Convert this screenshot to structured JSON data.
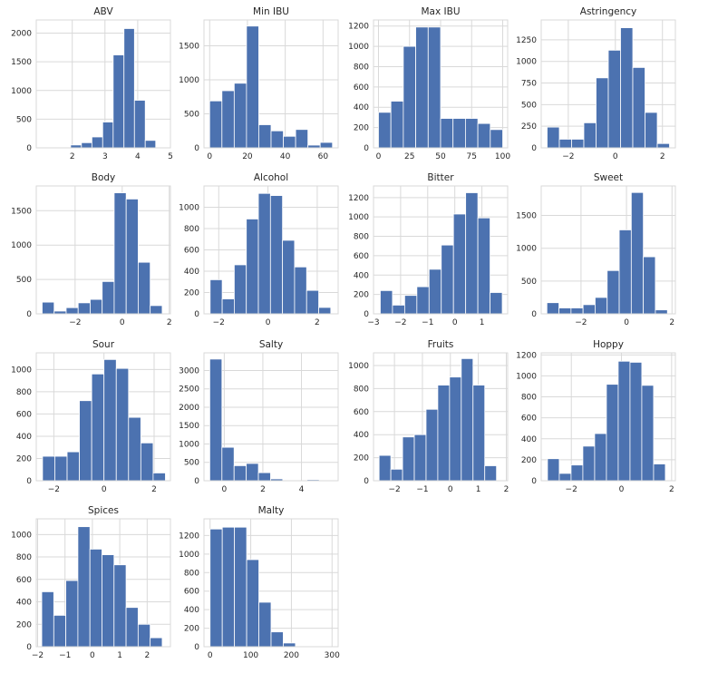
{
  "colors": {
    "bar": "#4c72b0",
    "plot_bg": "#ffffff",
    "grid": "#d9d9d9",
    "text": "#262626"
  },
  "chart_data": [
    {
      "type": "bar",
      "title": "ABV",
      "xlim": [
        0.9,
        5.0
      ],
      "ylim": [
        0,
        2230
      ],
      "xticks": [
        2,
        3,
        4,
        5
      ],
      "yticks": [
        0,
        500,
        1000,
        1500,
        2000
      ],
      "bins": [
        [
          1.3,
          1.63,
          0
        ],
        [
          1.63,
          1.95,
          0
        ],
        [
          1.95,
          2.28,
          50
        ],
        [
          2.28,
          2.6,
          90
        ],
        [
          2.6,
          2.93,
          190
        ],
        [
          2.93,
          3.25,
          450
        ],
        [
          3.25,
          3.58,
          1620
        ],
        [
          3.58,
          3.9,
          2080
        ],
        [
          3.9,
          4.23,
          830
        ],
        [
          4.23,
          4.55,
          130
        ]
      ]
    },
    {
      "type": "bar",
      "title": "Min IBU",
      "xlim": [
        -3,
        68
      ],
      "ylim": [
        0,
        1880
      ],
      "xticks": [
        0,
        20,
        40,
        60
      ],
      "yticks": [
        0,
        500,
        1000,
        1500
      ],
      "bins": [
        [
          0,
          6.5,
          690
        ],
        [
          6.5,
          13,
          840
        ],
        [
          13,
          19.5,
          950
        ],
        [
          19.5,
          26,
          1790
        ],
        [
          26,
          32.5,
          340
        ],
        [
          32.5,
          39,
          250
        ],
        [
          39,
          45.5,
          170
        ],
        [
          45.5,
          52,
          270
        ],
        [
          52,
          58.5,
          40
        ],
        [
          58.5,
          65,
          80
        ]
      ]
    },
    {
      "type": "bar",
      "title": "Max IBU",
      "xlim": [
        -4,
        104
      ],
      "ylim": [
        0,
        1260
      ],
      "xticks": [
        0,
        25,
        50,
        75,
        100
      ],
      "yticks": [
        0,
        200,
        400,
        600,
        800,
        1000,
        1200
      ],
      "bins": [
        [
          0,
          10,
          350
        ],
        [
          10,
          20,
          460
        ],
        [
          20,
          30,
          1000
        ],
        [
          30,
          40,
          1190
        ],
        [
          40,
          50,
          1190
        ],
        [
          50,
          60,
          290
        ],
        [
          60,
          70,
          290
        ],
        [
          70,
          80,
          290
        ],
        [
          80,
          90,
          240
        ],
        [
          90,
          100,
          180
        ]
      ]
    },
    {
      "type": "bar",
      "title": "Astringency",
      "xlim": [
        -3.15,
        2.55
      ],
      "ylim": [
        0,
        1480
      ],
      "xticks": [
        -2,
        0,
        2
      ],
      "yticks": [
        0,
        250,
        500,
        750,
        1000,
        1250
      ],
      "bins": [
        [
          -2.9,
          -2.38,
          240
        ],
        [
          -2.38,
          -1.86,
          100
        ],
        [
          -1.86,
          -1.34,
          100
        ],
        [
          -1.34,
          -0.82,
          290
        ],
        [
          -0.82,
          -0.3,
          810
        ],
        [
          -0.3,
          0.22,
          1130
        ],
        [
          0.22,
          0.74,
          1390
        ],
        [
          0.74,
          1.26,
          930
        ],
        [
          1.26,
          1.78,
          410
        ],
        [
          1.78,
          2.3,
          50
        ]
      ]
    },
    {
      "type": "bar",
      "title": "Body",
      "xlim": [
        -3.65,
        2.05
      ],
      "ylim": [
        0,
        1860
      ],
      "xticks": [
        -2,
        0,
        2
      ],
      "yticks": [
        0,
        500,
        1000,
        1500
      ],
      "bins": [
        [
          -3.4,
          -2.89,
          170
        ],
        [
          -2.89,
          -2.38,
          40
        ],
        [
          -2.38,
          -1.87,
          90
        ],
        [
          -1.87,
          -1.36,
          160
        ],
        [
          -1.36,
          -0.85,
          210
        ],
        [
          -0.85,
          -0.34,
          470
        ],
        [
          -0.34,
          0.17,
          1760
        ],
        [
          0.17,
          0.68,
          1670
        ],
        [
          0.68,
          1.19,
          750
        ],
        [
          1.19,
          1.7,
          120
        ]
      ]
    },
    {
      "type": "bar",
      "title": "Alcohol",
      "xlim": [
        -2.6,
        2.85
      ],
      "ylim": [
        0,
        1200
      ],
      "xticks": [
        -2,
        0,
        2
      ],
      "yticks": [
        0,
        200,
        400,
        600,
        800,
        1000
      ],
      "bins": [
        [
          -2.35,
          -1.86,
          320
        ],
        [
          -1.86,
          -1.37,
          140
        ],
        [
          -1.37,
          -0.88,
          460
        ],
        [
          -0.88,
          -0.39,
          890
        ],
        [
          -0.39,
          0.1,
          1130
        ],
        [
          0.1,
          0.59,
          1110
        ],
        [
          0.59,
          1.08,
          690
        ],
        [
          1.08,
          1.57,
          440
        ],
        [
          1.57,
          2.06,
          220
        ],
        [
          2.06,
          2.55,
          60
        ]
      ]
    },
    {
      "type": "bar",
      "title": "Bitter",
      "xlim": [
        -3,
        1.95
      ],
      "ylim": [
        0,
        1320
      ],
      "xticks": [
        -3,
        -2,
        -1,
        0,
        1
      ],
      "yticks": [
        0,
        200,
        400,
        600,
        800,
        1000,
        1200
      ],
      "bins": [
        [
          -2.75,
          -2.3,
          240
        ],
        [
          -2.3,
          -1.85,
          90
        ],
        [
          -1.85,
          -1.4,
          190
        ],
        [
          -1.4,
          -0.95,
          280
        ],
        [
          -0.95,
          -0.5,
          460
        ],
        [
          -0.5,
          -0.05,
          710
        ],
        [
          -0.05,
          0.4,
          1030
        ],
        [
          0.4,
          0.85,
          1250
        ],
        [
          0.85,
          1.3,
          990
        ],
        [
          1.3,
          1.75,
          220
        ]
      ]
    },
    {
      "type": "bar",
      "title": "Sweet",
      "xlim": [
        -3.75,
        2.15
      ],
      "ylim": [
        0,
        1950
      ],
      "xticks": [
        -2,
        0,
        2
      ],
      "yticks": [
        0,
        500,
        1000,
        1500
      ],
      "bins": [
        [
          -3.5,
          -2.97,
          170
        ],
        [
          -2.97,
          -2.44,
          90
        ],
        [
          -2.44,
          -1.91,
          90
        ],
        [
          -1.91,
          -1.38,
          140
        ],
        [
          -1.38,
          -0.85,
          250
        ],
        [
          -0.85,
          -0.32,
          660
        ],
        [
          -0.32,
          0.21,
          1280
        ],
        [
          0.21,
          0.74,
          1850
        ],
        [
          0.74,
          1.27,
          870
        ],
        [
          1.27,
          1.8,
          60
        ]
      ]
    },
    {
      "type": "bar",
      "title": "Sour",
      "xlim": [
        -2.7,
        2.65
      ],
      "ylim": [
        0,
        1150
      ],
      "xticks": [
        -2,
        0,
        2
      ],
      "yticks": [
        0,
        200,
        400,
        600,
        800,
        1000
      ],
      "bins": [
        [
          -2.45,
          -1.96,
          220
        ],
        [
          -1.96,
          -1.47,
          220
        ],
        [
          -1.47,
          -0.98,
          260
        ],
        [
          -0.98,
          -0.49,
          720
        ],
        [
          -0.49,
          0,
          960
        ],
        [
          0,
          0.49,
          1090
        ],
        [
          0.49,
          0.98,
          1010
        ],
        [
          0.98,
          1.47,
          570
        ],
        [
          1.47,
          1.96,
          340
        ],
        [
          1.96,
          2.45,
          70
        ]
      ]
    },
    {
      "type": "bar",
      "title": "Salty",
      "xlim": [
        -1.05,
        5.9
      ],
      "ylim": [
        0,
        3480
      ],
      "xticks": [
        0,
        2,
        4
      ],
      "yticks": [
        0,
        500,
        1000,
        1500,
        2000,
        2500,
        3000
      ],
      "bins": [
        [
          -0.75,
          -0.12,
          3310
        ],
        [
          -0.12,
          0.51,
          910
        ],
        [
          0.51,
          1.14,
          410
        ],
        [
          1.14,
          1.77,
          470
        ],
        [
          1.77,
          2.4,
          220
        ],
        [
          2.4,
          3.03,
          50
        ],
        [
          3.03,
          3.66,
          0
        ],
        [
          3.66,
          4.29,
          0
        ],
        [
          4.29,
          4.92,
          30
        ],
        [
          4.92,
          5.55,
          0
        ]
      ]
    },
    {
      "type": "bar",
      "title": "Fruits",
      "xlim": [
        -2.75,
        2.05
      ],
      "ylim": [
        0,
        1110
      ],
      "xticks": [
        -2,
        -1,
        0,
        1,
        2
      ],
      "yticks": [
        0,
        200,
        400,
        600,
        800,
        1000
      ],
      "bins": [
        [
          -2.55,
          -2.13,
          220
        ],
        [
          -2.13,
          -1.71,
          100
        ],
        [
          -1.71,
          -1.29,
          380
        ],
        [
          -1.29,
          -0.87,
          400
        ],
        [
          -0.87,
          -0.45,
          620
        ],
        [
          -0.45,
          -0.03,
          830
        ],
        [
          -0.03,
          0.39,
          900
        ],
        [
          0.39,
          0.81,
          1060
        ],
        [
          0.81,
          1.23,
          830
        ],
        [
          1.23,
          1.65,
          130
        ]
      ]
    },
    {
      "type": "bar",
      "title": "Hoppy",
      "xlim": [
        -3.2,
        2.15
      ],
      "ylim": [
        0,
        1220
      ],
      "xticks": [
        -2,
        0,
        2
      ],
      "yticks": [
        0,
        200,
        400,
        600,
        800,
        1000,
        1200
      ],
      "bins": [
        [
          -2.95,
          -2.48,
          210
        ],
        [
          -2.48,
          -2.01,
          70
        ],
        [
          -2.01,
          -1.54,
          150
        ],
        [
          -1.54,
          -1.07,
          330
        ],
        [
          -1.07,
          -0.6,
          450
        ],
        [
          -0.6,
          -0.13,
          920
        ],
        [
          -0.13,
          0.34,
          1140
        ],
        [
          0.34,
          0.81,
          1130
        ],
        [
          0.81,
          1.28,
          910
        ],
        [
          1.28,
          1.75,
          160
        ]
      ]
    },
    {
      "type": "bar",
      "title": "Spices",
      "xlim": [
        -2.05,
        2.85
      ],
      "ylim": [
        0,
        1140
      ],
      "xticks": [
        -2,
        -1,
        0,
        1,
        2
      ],
      "yticks": [
        0,
        200,
        400,
        600,
        800,
        1000
      ],
      "bins": [
        [
          -1.85,
          -1.41,
          490
        ],
        [
          -1.41,
          -0.97,
          280
        ],
        [
          -0.97,
          -0.53,
          590
        ],
        [
          -0.53,
          -0.09,
          1070
        ],
        [
          -0.09,
          0.35,
          870
        ],
        [
          0.35,
          0.79,
          820
        ],
        [
          0.79,
          1.23,
          730
        ],
        [
          1.23,
          1.67,
          350
        ],
        [
          1.67,
          2.11,
          200
        ],
        [
          2.11,
          2.55,
          80
        ]
      ]
    },
    {
      "type": "bar",
      "title": "Malty",
      "xlim": [
        -15,
        315
      ],
      "ylim": [
        0,
        1380
      ],
      "xticks": [
        0,
        100,
        200,
        300
      ],
      "yticks": [
        0,
        200,
        400,
        600,
        800,
        1000,
        1200
      ],
      "bins": [
        [
          0,
          30,
          1270
        ],
        [
          30,
          60,
          1290
        ],
        [
          60,
          90,
          1290
        ],
        [
          90,
          120,
          940
        ],
        [
          120,
          150,
          480
        ],
        [
          150,
          180,
          160
        ],
        [
          180,
          210,
          40
        ],
        [
          210,
          240,
          0
        ],
        [
          240,
          270,
          0
        ],
        [
          270,
          300,
          0
        ]
      ]
    }
  ]
}
